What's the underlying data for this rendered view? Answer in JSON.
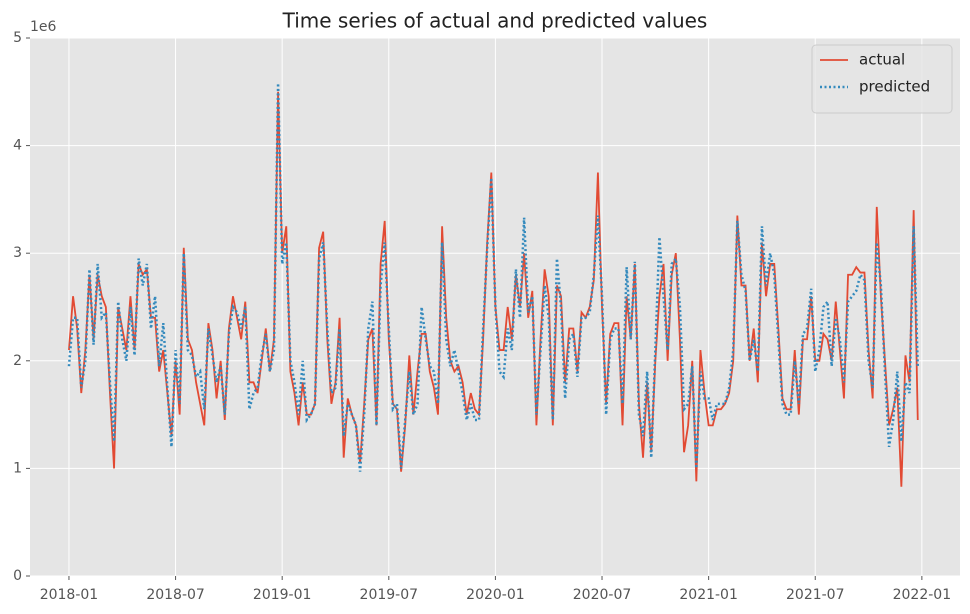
{
  "chart_data": {
    "type": "line",
    "title": "Time series of actual and predicted values",
    "y_offset_label": "1e6",
    "x": [
      0,
      1,
      2,
      3,
      4,
      5,
      6,
      7,
      8,
      9,
      10,
      11,
      12,
      13,
      14,
      15,
      16,
      17,
      18,
      19,
      20,
      21,
      22,
      23,
      24,
      25,
      26,
      27,
      28,
      29,
      30,
      31,
      32,
      33,
      34,
      35,
      36,
      37,
      38,
      39,
      40,
      41,
      42,
      43,
      44,
      45,
      46,
      47,
      48,
      49,
      50,
      51,
      52,
      53,
      54,
      55,
      56,
      57,
      58,
      59,
      60,
      61,
      62,
      63,
      64,
      65,
      66,
      67,
      68,
      69,
      70,
      71,
      72,
      73,
      74,
      75,
      76,
      77,
      78,
      79,
      80,
      81,
      82,
      83,
      84,
      85,
      86,
      87,
      88,
      89,
      90,
      91,
      92,
      93,
      94,
      95,
      96,
      97,
      98,
      99,
      100,
      101,
      102,
      103,
      104,
      105,
      106,
      107,
      108,
      109,
      110,
      111,
      112,
      113,
      114,
      115,
      116,
      117,
      118,
      119,
      120,
      121,
      122,
      123,
      124,
      125,
      126,
      127,
      128,
      129,
      130,
      131,
      132,
      133,
      134,
      135,
      136,
      137,
      138,
      139,
      140,
      141,
      142,
      143,
      144,
      145,
      146,
      147,
      148,
      149,
      150,
      151,
      152,
      153,
      154,
      155,
      156,
      157,
      158,
      159,
      160,
      161,
      162,
      163,
      164,
      165,
      166,
      167,
      168,
      169,
      170,
      171,
      172,
      173,
      174,
      175,
      176,
      177,
      178,
      179,
      180,
      181,
      182,
      183,
      184,
      185,
      186,
      187,
      188,
      189,
      190,
      191,
      192,
      193,
      194,
      195,
      196,
      197,
      198,
      199,
      200,
      201,
      202,
      203,
      204,
      205,
      206,
      207
    ],
    "series": [
      {
        "name": "actual",
        "color": "#e24a33",
        "dash": "solid",
        "values": [
          2.1,
          2.6,
          2.3,
          1.7,
          2.1,
          2.8,
          2.2,
          2.8,
          2.6,
          2.5,
          1.7,
          1.0,
          2.5,
          2.3,
          2.1,
          2.6,
          2.1,
          2.9,
          2.8,
          2.85,
          2.4,
          2.4,
          1.9,
          2.1,
          1.7,
          1.3,
          2.0,
          1.5,
          3.05,
          2.2,
          2.1,
          1.8,
          1.6,
          1.4,
          2.35,
          2.1,
          1.65,
          2.0,
          1.45,
          2.3,
          2.6,
          2.4,
          2.2,
          2.55,
          1.8,
          1.8,
          1.7,
          2.0,
          2.3,
          1.9,
          2.2,
          4.5,
          3.0,
          3.25,
          1.9,
          1.7,
          1.4,
          1.8,
          1.5,
          1.5,
          1.6,
          3.05,
          3.2,
          2.2,
          1.6,
          1.8,
          2.4,
          1.1,
          1.65,
          1.5,
          1.4,
          1.05,
          1.6,
          2.2,
          2.3,
          1.4,
          2.9,
          3.3,
          2.2,
          1.6,
          1.55,
          0.97,
          1.4,
          2.05,
          1.5,
          1.9,
          2.25,
          2.25,
          1.9,
          1.75,
          1.5,
          3.25,
          2.4,
          2.0,
          1.9,
          1.95,
          1.8,
          1.5,
          1.7,
          1.55,
          1.5,
          2.2,
          3.1,
          3.75,
          2.5,
          2.1,
          2.1,
          2.5,
          2.2,
          2.8,
          2.5,
          3.0,
          2.4,
          2.65,
          1.4,
          2.2,
          2.85,
          2.6,
          1.4,
          2.7,
          2.6,
          1.8,
          2.3,
          2.3,
          1.9,
          2.45,
          2.4,
          2.5,
          2.75,
          3.75,
          2.5,
          1.6,
          2.25,
          2.35,
          2.35,
          1.4,
          2.6,
          2.2,
          2.9,
          1.6,
          1.1,
          1.8,
          1.15,
          2.0,
          2.6,
          2.9,
          2.0,
          2.8,
          3.0,
          2.2,
          1.15,
          1.4,
          2.0,
          0.88,
          2.1,
          1.7,
          1.4,
          1.4,
          1.55,
          1.55,
          1.6,
          1.7,
          2.0,
          3.35,
          2.7,
          2.7,
          2.0,
          2.3,
          1.8,
          3.1,
          2.6,
          2.9,
          2.9,
          2.3,
          1.65,
          1.55,
          1.55,
          2.1,
          1.5,
          2.2,
          2.2,
          2.6,
          2.0,
          2.0,
          2.25,
          2.2,
          2.0,
          2.55,
          2.1,
          1.65,
          2.8,
          2.8,
          2.87,
          2.82,
          2.82,
          2.1,
          1.65,
          3.43,
          2.6,
          2.0,
          1.4,
          1.55,
          1.75,
          0.83,
          2.05,
          1.8,
          3.4,
          1.45
        ]
      },
      {
        "name": "predicted",
        "color": "#348abd",
        "dash": "dotted",
        "values": [
          1.95,
          2.4,
          2.4,
          1.75,
          2.0,
          2.85,
          2.15,
          2.9,
          2.4,
          2.45,
          1.8,
          1.25,
          2.55,
          2.2,
          2.0,
          2.5,
          2.05,
          2.95,
          2.7,
          2.9,
          2.3,
          2.6,
          1.95,
          2.35,
          1.75,
          1.2,
          2.1,
          1.6,
          3.0,
          2.1,
          2.05,
          1.85,
          1.9,
          1.55,
          2.3,
          2.05,
          1.8,
          1.95,
          1.5,
          2.25,
          2.5,
          2.45,
          2.3,
          2.5,
          1.55,
          1.7,
          1.75,
          2.05,
          2.25,
          1.9,
          2.1,
          4.58,
          2.9,
          3.1,
          2.0,
          1.8,
          1.5,
          2.0,
          1.45,
          1.5,
          1.6,
          2.95,
          3.1,
          2.3,
          1.7,
          1.75,
          2.3,
          1.3,
          1.6,
          1.5,
          1.4,
          0.97,
          1.5,
          2.3,
          2.55,
          1.4,
          2.7,
          3.1,
          2.3,
          1.55,
          1.6,
          1.0,
          1.45,
          1.9,
          1.5,
          1.6,
          2.5,
          2.2,
          1.95,
          1.9,
          1.6,
          3.1,
          2.2,
          1.95,
          2.1,
          1.9,
          1.7,
          1.45,
          1.6,
          1.45,
          1.45,
          2.3,
          3.05,
          3.7,
          2.5,
          1.9,
          1.85,
          2.3,
          2.1,
          2.85,
          2.4,
          3.33,
          2.45,
          2.6,
          1.5,
          2.1,
          2.7,
          2.4,
          1.45,
          2.95,
          2.5,
          1.65,
          2.2,
          2.25,
          1.85,
          2.4,
          2.4,
          2.45,
          2.8,
          3.35,
          2.6,
          1.5,
          2.2,
          2.3,
          2.3,
          1.6,
          2.87,
          2.2,
          2.92,
          1.5,
          1.3,
          1.9,
          1.1,
          2.1,
          3.15,
          2.6,
          2.1,
          2.9,
          2.95,
          2.5,
          1.55,
          1.6,
          1.95,
          1.0,
          1.9,
          1.65,
          1.65,
          1.45,
          1.6,
          1.6,
          1.6,
          1.75,
          2.1,
          3.3,
          2.8,
          2.65,
          2.0,
          2.2,
          1.9,
          3.25,
          2.7,
          3.0,
          2.8,
          2.2,
          1.6,
          1.5,
          1.5,
          2.0,
          1.6,
          2.25,
          2.3,
          2.67,
          1.9,
          2.1,
          2.5,
          2.55,
          1.95,
          2.4,
          2.2,
          1.8,
          2.55,
          2.6,
          2.65,
          2.8,
          2.75,
          2.0,
          1.75,
          3.1,
          2.7,
          1.9,
          1.2,
          1.45,
          1.9,
          1.25,
          1.8,
          1.7,
          3.25,
          1.95
        ]
      }
    ],
    "xlim": [
      -9.5,
      217.3
    ],
    "xticks": [
      {
        "value": 0,
        "label": "2018-01"
      },
      {
        "value": 26,
        "label": "2018-07"
      },
      {
        "value": 52,
        "label": "2019-01"
      },
      {
        "value": 78,
        "label": "2019-07"
      },
      {
        "value": 104,
        "label": "2020-01"
      },
      {
        "value": 130,
        "label": "2020-07"
      },
      {
        "value": 156,
        "label": "2021-01"
      },
      {
        "value": 182,
        "label": "2021-07"
      },
      {
        "value": 208,
        "label": "2022-01"
      }
    ],
    "ylim": [
      0,
      5
    ],
    "yticks": [
      0,
      1,
      2,
      3,
      4,
      5
    ],
    "grid": true,
    "legend": "upper right"
  }
}
